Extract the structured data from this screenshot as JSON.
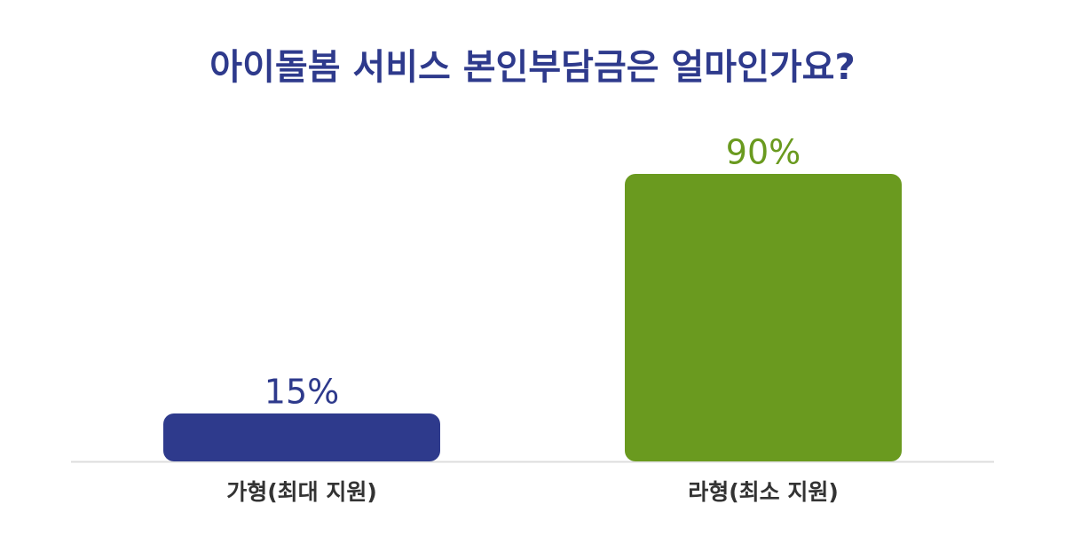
{
  "chart_data": {
    "type": "bar",
    "title": "아이돌봄 서비스 본인부담금은 얼마인가요?",
    "categories": [
      "가형(최대 지원)",
      "라형(최소 지원)"
    ],
    "values": [
      15,
      90
    ],
    "value_labels": [
      "15%",
      "90%"
    ],
    "colors": [
      "#2e3a8c",
      "#6a9a1f"
    ]
  }
}
